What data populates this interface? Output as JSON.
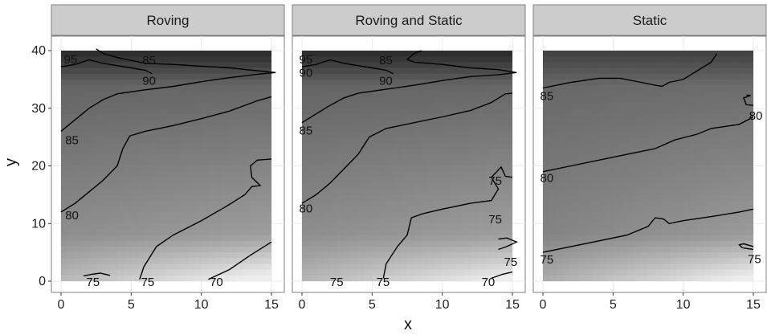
{
  "chart_data": {
    "type": "heatmap",
    "xlabel": "x",
    "ylabel": "y",
    "xlim": [
      0,
      15
    ],
    "ylim": [
      0,
      40
    ],
    "x_ticks": [
      0,
      5,
      10,
      15
    ],
    "y_ticks": [
      0,
      10,
      20,
      30,
      40
    ],
    "x_tick_labels": [
      "0",
      "5",
      "10",
      "15"
    ],
    "y_tick_labels": [
      "0",
      "10",
      "20",
      "30",
      "40"
    ],
    "fill_scale": "grayscale, darker = higher value",
    "grid": true,
    "colors": {
      "panel_bg": "#ffffff",
      "strip_bg": "#cccccc",
      "grid": "#ebebeb",
      "contour": "#000000"
    },
    "panels": [
      {
        "facet": "Roving",
        "field": {
          "min": 66,
          "max": 97,
          "top_band": 95,
          "plateau": 78,
          "corner": 67
        },
        "contours": [
          {
            "level": 85,
            "points": [
              [
                0,
                26
              ],
              [
                1,
                28
              ],
              [
                2,
                30
              ],
              [
                3,
                31.5
              ],
              [
                4,
                32.5
              ],
              [
                6,
                33.2
              ],
              [
                8,
                33.8
              ],
              [
                10,
                34.6
              ],
              [
                12,
                35.3
              ],
              [
                14,
                35.9
              ],
              [
                15.3,
                36.2
              ],
              [
                14,
                36.5
              ],
              [
                12,
                37
              ],
              [
                10,
                37.3
              ],
              [
                8,
                37.6
              ],
              [
                6,
                37.8
              ],
              [
                5,
                38.3
              ],
              [
                4,
                38.8
              ],
              [
                3,
                39.5
              ],
              [
                2.5,
                40.3
              ]
            ]
          },
          {
            "level": 85,
            "points": [
              [
                0,
                37.2
              ],
              [
                1,
                37.6
              ],
              [
                2,
                38.4
              ],
              [
                3,
                37.8
              ],
              [
                4,
                37.4
              ],
              [
                5,
                37
              ],
              [
                6,
                36.6
              ],
              [
                6.5,
                36
              ]
            ]
          },
          {
            "level": 80,
            "points": [
              [
                0,
                12
              ],
              [
                1,
                13.5
              ],
              [
                2,
                15.5
              ],
              [
                3,
                17.5
              ],
              [
                4,
                20
              ],
              [
                4.4,
                23
              ],
              [
                4.9,
                25.2
              ],
              [
                6,
                26
              ],
              [
                8,
                27
              ],
              [
                10,
                28.2
              ],
              [
                12,
                29.5
              ],
              [
                14,
                31.3
              ],
              [
                15,
                32
              ]
            ]
          },
          {
            "level": 75,
            "points": [
              [
                5.6,
                0.3
              ],
              [
                5.9,
                2.5
              ],
              [
                6.8,
                6
              ],
              [
                8,
                8
              ],
              [
                10,
                10.5
              ],
              [
                11.8,
                13
              ],
              [
                13.1,
                15
              ],
              [
                13.6,
                16.4
              ],
              [
                14.2,
                16.6
              ],
              [
                13.6,
                18
              ],
              [
                13.5,
                20
              ],
              [
                14,
                21
              ],
              [
                15,
                21.2
              ]
            ]
          },
          {
            "level": 75,
            "points": [
              [
                1.6,
                0.9
              ],
              [
                2.2,
                1.2
              ],
              [
                2.8,
                1.4
              ],
              [
                3.5,
                1
              ]
            ]
          },
          {
            "level": 70,
            "points": [
              [
                10.5,
                0.3
              ],
              [
                12,
                2
              ],
              [
                13.5,
                4.5
              ],
              [
                15,
                6.8
              ]
            ]
          }
        ],
        "labels": [
          {
            "text": "95",
            "x": 0.2,
            "y": 38.3
          },
          {
            "text": "85",
            "x": 5.8,
            "y": 38.2
          },
          {
            "text": "90",
            "x": 5.8,
            "y": 34.6
          },
          {
            "text": "85",
            "x": 0.3,
            "y": 24.3
          },
          {
            "text": "80",
            "x": 0.3,
            "y": 11.3
          },
          {
            "text": "75",
            "x": 1.8,
            "y": -0.3
          },
          {
            "text": "75",
            "x": 5.7,
            "y": -0.3
          },
          {
            "text": "70",
            "x": 10.6,
            "y": -0.3
          }
        ]
      },
      {
        "facet": "Roving and Static",
        "field": {
          "min": 66,
          "max": 97,
          "top_band": 95,
          "plateau": 78,
          "corner": 68
        },
        "contours": [
          {
            "level": 85,
            "points": [
              [
                0,
                27.5
              ],
              [
                1,
                29
              ],
              [
                2,
                30.5
              ],
              [
                3,
                31.8
              ],
              [
                4,
                32.6
              ],
              [
                6,
                33.3
              ],
              [
                8,
                34
              ],
              [
                10,
                34.8
              ],
              [
                12,
                35.5
              ],
              [
                14,
                35.8
              ],
              [
                15.3,
                36.2
              ],
              [
                14,
                36.7
              ],
              [
                12,
                37
              ],
              [
                10,
                37.6
              ],
              [
                8,
                38
              ],
              [
                7.5,
                38.5
              ],
              [
                8,
                39.5
              ],
              [
                8.5,
                40
              ]
            ]
          },
          {
            "level": 85,
            "points": [
              [
                0,
                37.2
              ],
              [
                1,
                37.6
              ],
              [
                2,
                38.4
              ],
              [
                3,
                37.8
              ],
              [
                4,
                37.4
              ],
              [
                5,
                37
              ],
              [
                6,
                36.6
              ],
              [
                6.5,
                36
              ]
            ]
          },
          {
            "level": 80,
            "points": [
              [
                0,
                13.5
              ],
              [
                1,
                15
              ],
              [
                2,
                17
              ],
              [
                3,
                19.5
              ],
              [
                4,
                22
              ],
              [
                4.8,
                25
              ],
              [
                6,
                26.5
              ],
              [
                8,
                27.5
              ],
              [
                10,
                28.5
              ],
              [
                12,
                29.6
              ],
              [
                13.5,
                31
              ],
              [
                14.5,
                32.5
              ],
              [
                15,
                32.6
              ]
            ]
          },
          {
            "level": 75,
            "points": [
              [
                5.8,
                0.5
              ],
              [
                6,
                3
              ],
              [
                6.8,
                6
              ],
              [
                7.5,
                8
              ],
              [
                7.8,
                11
              ],
              [
                8.6,
                11.7
              ],
              [
                10,
                12.5
              ],
              [
                12,
                13.5
              ],
              [
                13.5,
                14
              ],
              [
                14,
                16
              ],
              [
                13.5,
                18
              ],
              [
                14.2,
                19.8
              ],
              [
                14.5,
                18.2
              ],
              [
                15,
                18
              ]
            ]
          },
          {
            "level": 75,
            "points": [
              [
                14,
                5.5
              ],
              [
                14.6,
                6
              ],
              [
                15.3,
                6.8
              ],
              [
                14.6,
                7.5
              ],
              [
                14,
                7.3
              ]
            ]
          },
          {
            "level": 70,
            "points": [
              [
                13.5,
                0.5
              ],
              [
                14.3,
                1.2
              ],
              [
                15,
                1.6
              ]
            ]
          }
        ],
        "labels": [
          {
            "text": "95",
            "x": -0.2,
            "y": 38.3
          },
          {
            "text": "85",
            "x": 5.5,
            "y": 38.2
          },
          {
            "text": "90",
            "x": -0.2,
            "y": 36
          },
          {
            "text": "90",
            "x": 5.5,
            "y": 34.6
          },
          {
            "text": "85",
            "x": -0.2,
            "y": 26
          },
          {
            "text": "80",
            "x": -0.2,
            "y": 12.5
          },
          {
            "text": "75",
            "x": 13.3,
            "y": 17.3
          },
          {
            "text": "75",
            "x": 13.3,
            "y": 10.6
          },
          {
            "text": "75",
            "x": 14.4,
            "y": 3.2
          },
          {
            "text": "75",
            "x": 2,
            "y": -0.3
          },
          {
            "text": "75",
            "x": 5.3,
            "y": -0.3
          },
          {
            "text": "70",
            "x": 12.8,
            "y": -0.3
          }
        ]
      },
      {
        "facet": "Static",
        "field": {
          "min": 70,
          "max": 92,
          "top_band": 88,
          "plateau": 80,
          "corner": 72
        },
        "contours": [
          {
            "level": 85,
            "points": [
              [
                0,
                33.5
              ],
              [
                2,
                34.5
              ],
              [
                4,
                35.2
              ],
              [
                5.5,
                35.2
              ],
              [
                7,
                34.5
              ],
              [
                8,
                34
              ],
              [
                8.5,
                33.8
              ],
              [
                9,
                34.5
              ],
              [
                10,
                35
              ],
              [
                11,
                36.5
              ],
              [
                12,
                38
              ],
              [
                12.4,
                39.5
              ]
            ]
          },
          {
            "level": 80,
            "points": [
              [
                14.5,
                32.3
              ],
              [
                14.8,
                32.2
              ],
              [
                14.3,
                31.8
              ],
              [
                14.5,
                30.6
              ],
              [
                15,
                30.5
              ]
            ]
          },
          {
            "level": 80,
            "points": [
              [
                0,
                19
              ],
              [
                2,
                20
              ],
              [
                4,
                21
              ],
              [
                6,
                22
              ],
              [
                8,
                23
              ],
              [
                9.4,
                24.5
              ],
              [
                11,
                25.5
              ],
              [
                12,
                26.5
              ],
              [
                14,
                27.2
              ],
              [
                15,
                28.5
              ]
            ]
          },
          {
            "level": 75,
            "points": [
              [
                0,
                5
              ],
              [
                2,
                6
              ],
              [
                4,
                7
              ],
              [
                6,
                8
              ],
              [
                7.5,
                9.5
              ],
              [
                8,
                11
              ],
              [
                8.6,
                10.8
              ],
              [
                9,
                10
              ],
              [
                10,
                10.5
              ],
              [
                12,
                11.2
              ],
              [
                14,
                12
              ],
              [
                15,
                12.5
              ]
            ]
          },
          {
            "level": 75,
            "points": [
              [
                15,
                6
              ],
              [
                14.3,
                6.5
              ],
              [
                14,
                6.3
              ],
              [
                14.2,
                5.8
              ],
              [
                15,
                5.5
              ]
            ]
          }
        ],
        "labels": [
          {
            "text": "85",
            "x": -0.2,
            "y": 32
          },
          {
            "text": "80",
            "x": 14.7,
            "y": 28.6
          },
          {
            "text": "80",
            "x": -0.2,
            "y": 17.8
          },
          {
            "text": "75",
            "x": -0.2,
            "y": 3.6
          },
          {
            "text": "75",
            "x": 14.6,
            "y": 3.7
          }
        ]
      }
    ]
  }
}
